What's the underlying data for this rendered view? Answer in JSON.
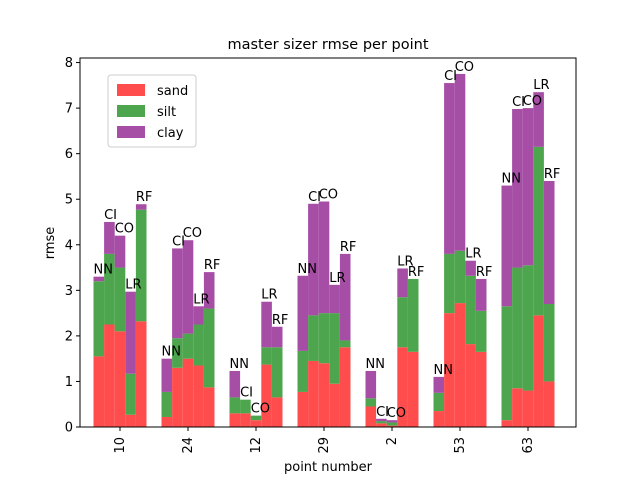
{
  "chart_data": {
    "type": "bar",
    "stacked": true,
    "title": "master sizer rmse per point",
    "xlabel": "point number",
    "ylabel": "rmse",
    "ylim": [
      0,
      8.1
    ],
    "yticks": [
      "0",
      "1",
      "2",
      "3",
      "4",
      "5",
      "6",
      "7",
      "8"
    ],
    "categories": [
      "10",
      "24",
      "12",
      "29",
      "2",
      "53",
      "63"
    ],
    "methods": [
      "NN",
      "CI",
      "CO",
      "LR",
      "RF"
    ],
    "legend_position": "upper-left",
    "grid": false,
    "colors": {
      "sand": "#ff4d4d",
      "silt": "#4da64d",
      "clay": "#a64da6"
    },
    "series": [
      {
        "name": "sand",
        "values": [
          [
            1.55,
            2.25,
            2.1,
            0.27,
            2.32
          ],
          [
            0.22,
            1.3,
            1.5,
            1.35,
            0.87
          ],
          [
            0.3,
            0.3,
            0.15,
            1.37,
            0.65
          ],
          [
            0.77,
            1.45,
            1.4,
            0.95,
            1.75
          ],
          [
            0.45,
            0.08,
            0.03,
            1.75,
            1.65
          ],
          [
            0.35,
            2.5,
            2.72,
            1.82,
            1.65
          ],
          [
            0.15,
            0.85,
            0.8,
            2.45,
            1.0
          ]
        ]
      },
      {
        "name": "silt",
        "values": [
          [
            1.65,
            1.55,
            1.4,
            0.9,
            2.45
          ],
          [
            0.55,
            0.65,
            0.55,
            0.9,
            1.73
          ],
          [
            0.35,
            0.3,
            0.1,
            0.38,
            1.1
          ],
          [
            0.9,
            1.0,
            1.1,
            1.55,
            0.15
          ],
          [
            0.18,
            0.05,
            0.07,
            1.1,
            1.6
          ],
          [
            0.4,
            1.3,
            1.15,
            1.5,
            0.9
          ],
          [
            2.5,
            2.65,
            2.75,
            3.7,
            1.7
          ]
        ]
      },
      {
        "name": "clay",
        "values": [
          [
            0.1,
            0.7,
            0.7,
            1.8,
            0.12
          ],
          [
            0.73,
            1.97,
            2.05,
            0.4,
            0.8
          ],
          [
            0.58,
            0.0,
            0.0,
            1.0,
            0.45
          ],
          [
            1.65,
            2.45,
            2.45,
            0.62,
            1.9
          ],
          [
            0.6,
            0.05,
            0.05,
            0.63,
            0.0
          ],
          [
            0.35,
            3.75,
            3.88,
            0.33,
            0.7
          ],
          [
            2.65,
            3.48,
            3.45,
            1.2,
            2.7
          ]
        ]
      }
    ]
  }
}
